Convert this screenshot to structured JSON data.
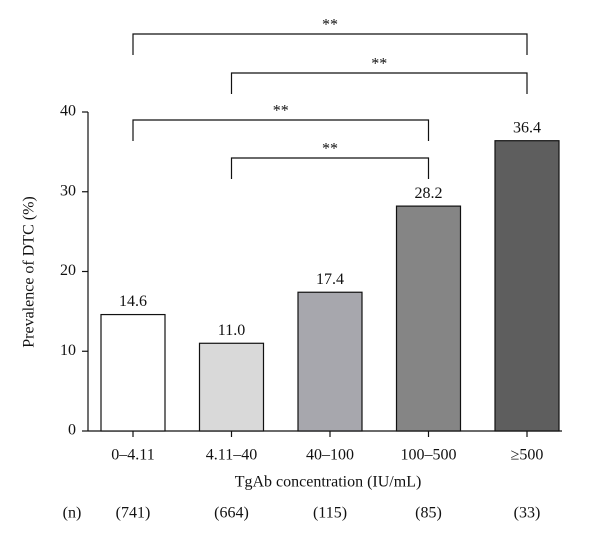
{
  "chart_data": {
    "type": "bar",
    "ylabel": "Prevalence of DTC (%)",
    "xlabel": "TgAb concentration (IU/mL)",
    "categories": [
      "0–4.11",
      "4.11–40",
      "40–100",
      "100–500",
      "≥500"
    ],
    "values": [
      14.6,
      11.0,
      17.4,
      28.2,
      36.4
    ],
    "value_labels": [
      "14.6",
      "11.0",
      "17.4",
      "28.2",
      "36.4"
    ],
    "colors": [
      "#ffffff",
      "#d9d9d9",
      "#a7a7ad",
      "#858585",
      "#5e5e5e"
    ],
    "ylim": [
      0,
      40
    ],
    "yticks": [
      0,
      10,
      20,
      30,
      40
    ],
    "n_label": "(n)",
    "n_values": [
      "(741)",
      "(664)",
      "(115)",
      "(85)",
      "(33)"
    ],
    "annotations": [
      {
        "from": 0,
        "to": 4,
        "label": "**"
      },
      {
        "from": 1,
        "to": 4,
        "label": "**"
      },
      {
        "from": 0,
        "to": 3,
        "label": "**"
      },
      {
        "from": 1,
        "to": 3,
        "label": "**"
      }
    ]
  }
}
